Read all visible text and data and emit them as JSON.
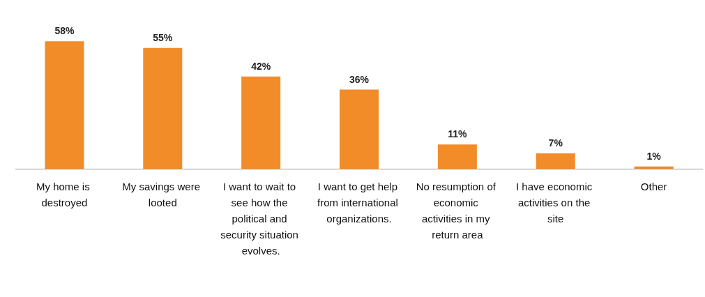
{
  "chart_data": {
    "type": "bar",
    "categories": [
      "My home is destroyed",
      "My savings were looted",
      "I want to wait to see how the political and security situation evolves.",
      "I want to get help from international organizations.",
      "No resumption of economic activities in my return area",
      "I have economic activities on the site",
      "Other"
    ],
    "values": [
      58,
      55,
      42,
      36,
      11,
      7,
      1
    ],
    "value_labels": [
      "58%",
      "55%",
      "42%",
      "36%",
      "11%",
      "7%",
      "1%"
    ],
    "color": "#f28c28"
  }
}
